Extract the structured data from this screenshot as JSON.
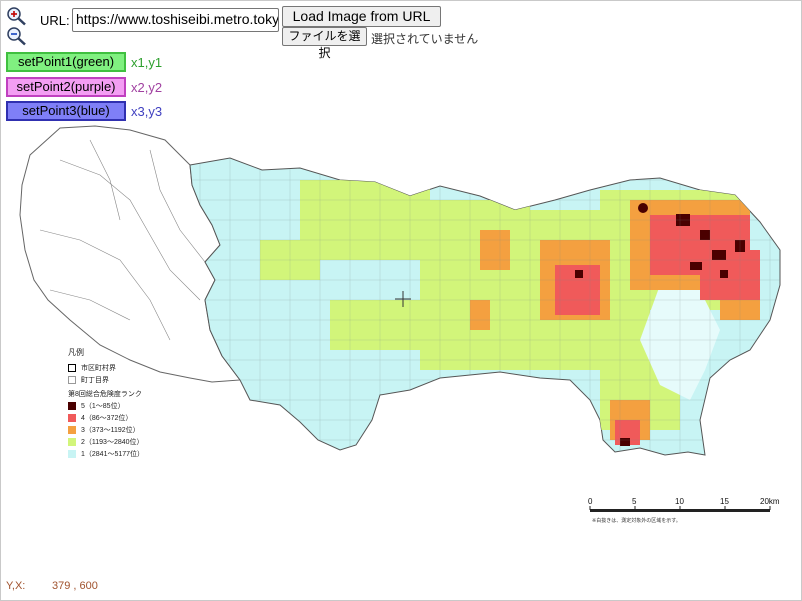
{
  "toolbar": {
    "zoom_in_icon": "magnifier-plus-icon",
    "zoom_out_icon": "magnifier-minus-icon",
    "url_label": "URL:",
    "url_value": "https://www.toshiseibi.metro.tokyo",
    "load_button": "Load Image from URL",
    "file_button": "ファイルを選択",
    "file_status": "選択されていません"
  },
  "points": [
    {
      "label": "setPoint1(green)",
      "value": "x1,y1",
      "color": "#80f080"
    },
    {
      "label": "setPoint2(purple)",
      "value": "x2,y2",
      "color": "#f39ef3"
    },
    {
      "label": "setPoint3(blue)",
      "value": "x3,y3",
      "color": "#7f7ff7"
    }
  ],
  "legend": {
    "title": "凡例",
    "boundary_city": "市区町村界",
    "boundary_town": "町丁目界",
    "rank_title": "第8回総合危険度ランク",
    "ranks": [
      {
        "label": "5（1～85位）",
        "color": "#4a0000"
      },
      {
        "label": "4（86～372位）",
        "color": "#f05a5a"
      },
      {
        "label": "3（373～1192位）",
        "color": "#f4a040"
      },
      {
        "label": "2（1193～2840位）",
        "color": "#d2f57a"
      },
      {
        "label": "1（2841～5177位）",
        "color": "#c8f4f4"
      }
    ]
  },
  "scale": {
    "ticks": [
      "0",
      "5",
      "10",
      "15",
      "20km"
    ],
    "note": "※白抜きは、測定対象外の区域を示す。"
  },
  "status": {
    "coord_label": "Y,X:",
    "coord_value": "379 , 600"
  }
}
